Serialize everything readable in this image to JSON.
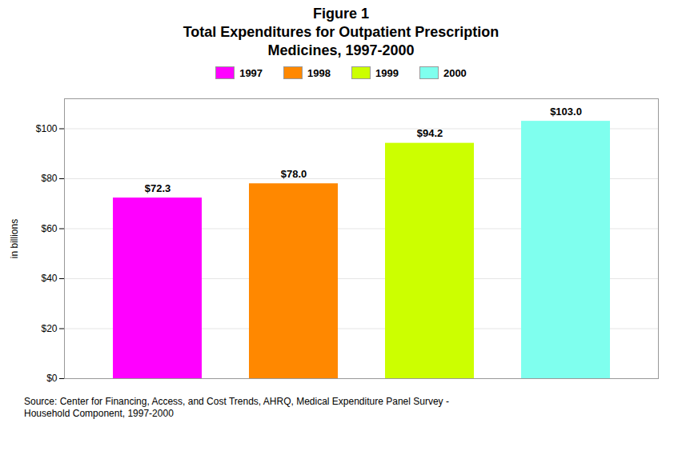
{
  "chart_data": {
    "type": "bar",
    "title": "Figure 1\nTotal Expenditures for Outpatient Prescription\nMedicines, 1997-2000",
    "categories": [
      "1997",
      "1998",
      "1999",
      "2000"
    ],
    "values": [
      72.3,
      78.0,
      94.2,
      103.0
    ],
    "value_labels": [
      "$72.3",
      "$78.0",
      "$94.2",
      "$103.0"
    ],
    "data_labels": true,
    "colors": [
      "#ff00ff",
      "#ff8800",
      "#ccff00",
      "#7fffee"
    ],
    "ylabel": "in billions",
    "ylim": [
      0,
      112
    ],
    "yticks": [
      {
        "value": 0,
        "label": "$0"
      },
      {
        "value": 20,
        "label": "$20"
      },
      {
        "value": 40,
        "label": "$40"
      },
      {
        "value": 60,
        "label": "$60"
      },
      {
        "value": 80,
        "label": "$80"
      },
      {
        "value": 100,
        "label": "$100"
      }
    ],
    "grid": true,
    "legend": "top",
    "tick_labels": "y",
    "source": "Source: Center for Financing, Access, and Cost Trends, AHRQ, Medical Expenditure Panel Survey -\nHousehold Component, 1997-2000"
  }
}
